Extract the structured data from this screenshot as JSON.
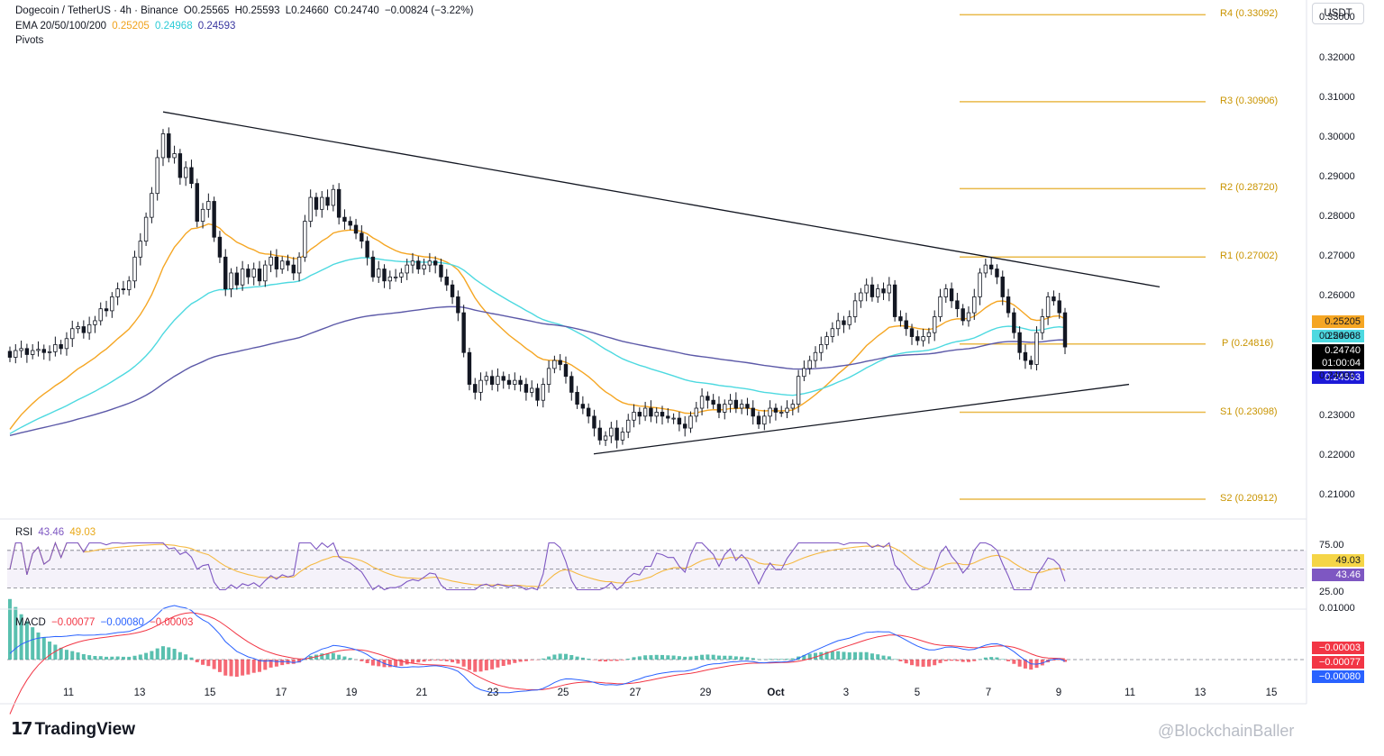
{
  "header": {
    "symbol": "Dogecoin / TetherUS · 4h · Binance",
    "open": "O0.25565",
    "high": "H0.25593",
    "low": "L0.24660",
    "close": "C0.24740",
    "change": "−0.00824 (−3.22%)",
    "ema_label": "EMA 20/50/100/200",
    "ema20": "0.25205",
    "ema50": "0.24968",
    "ema200": "0.24593",
    "pivots_label": "Pivots"
  },
  "currency_button": "USDT",
  "rsi_header": {
    "label": "RSI",
    "rsi": "43.46",
    "ma": "49.03"
  },
  "macd_header": {
    "label": "MACD",
    "macd": "−0.00077",
    "signal": "−0.00080",
    "hist": "−0.00003"
  },
  "price_badges": {
    "ema20": "0.25205",
    "ema50": "0.24968",
    "last": "0.24740",
    "countdown": "01:00:04",
    "ema200": "0.24593"
  },
  "rsi_badges": {
    "ma": "49.03",
    "rsi": "43.46"
  },
  "macd_badges": {
    "hist": "−0.00003",
    "macd": "−0.00077",
    "signal": "−0.00080"
  },
  "colors": {
    "ema20": "#f5a623",
    "ema50": "#4dd9e0",
    "ema200": "#5c59a8",
    "up": "#131722",
    "pivot": "#e9b949",
    "rsi_line": "#7e57c2",
    "rsi_ma": "#f5b942",
    "macd": "#2962ff",
    "signal": "#f23645",
    "hist_up": "#22ab94",
    "hist_down": "#f23645"
  },
  "branding": {
    "logo": "TradingView",
    "watermark": "@BlockchainBaller"
  },
  "chart_data": [
    {
      "type": "candlestick",
      "title": "Dogecoin / TetherUS · 4h · Binance",
      "x_tick_labels": [
        "11",
        "13",
        "15",
        "17",
        "19",
        "21",
        "23",
        "25",
        "27",
        "29",
        "Oct",
        "3",
        "5",
        "7",
        "9",
        "11",
        "13",
        "15"
      ],
      "y_tick_labels": [
        "0.21000",
        "0.22000",
        "0.23000",
        "0.24000",
        "0.25000",
        "0.26000",
        "0.27000",
        "0.28000",
        "0.29000",
        "0.30000",
        "0.31000",
        "0.32000",
        "0.33000"
      ],
      "ylim": [
        0.2055,
        0.3335
      ],
      "candle_close": [
        0.2448,
        0.2465,
        0.247,
        0.2455,
        0.2465,
        0.2468,
        0.246,
        0.2462,
        0.248,
        0.247,
        0.2495,
        0.252,
        0.2525,
        0.251,
        0.253,
        0.254,
        0.257,
        0.2565,
        0.26,
        0.262,
        0.2618,
        0.264,
        0.27,
        0.274,
        0.28,
        0.286,
        0.295,
        0.301,
        0.295,
        0.296,
        0.29,
        0.2925,
        0.2885,
        0.279,
        0.282,
        0.284,
        0.275,
        0.27,
        0.262,
        0.266,
        0.263,
        0.267,
        0.265,
        0.267,
        0.264,
        0.268,
        0.27,
        0.267,
        0.269,
        0.268,
        0.266,
        0.27,
        0.279,
        0.285,
        0.282,
        0.285,
        0.283,
        0.287,
        0.28,
        0.279,
        0.278,
        0.276,
        0.274,
        0.27,
        0.265,
        0.267,
        0.264,
        0.265,
        0.265,
        0.266,
        0.268,
        0.269,
        0.267,
        0.268,
        0.269,
        0.268,
        0.265,
        0.263,
        0.26,
        0.256,
        0.246,
        0.238,
        0.236,
        0.239,
        0.24,
        0.238,
        0.24,
        0.239,
        0.238,
        0.239,
        0.238,
        0.236,
        0.237,
        0.234,
        0.238,
        0.242,
        0.244,
        0.243,
        0.24,
        0.236,
        0.233,
        0.232,
        0.23,
        0.227,
        0.224,
        0.225,
        0.227,
        0.224,
        0.226,
        0.229,
        0.231,
        0.23,
        0.232,
        0.23,
        0.231,
        0.23,
        0.2295,
        0.2295,
        0.228,
        0.227,
        0.23,
        0.232,
        0.235,
        0.234,
        0.233,
        0.231,
        0.233,
        0.234,
        0.232,
        0.233,
        0.232,
        0.23,
        0.228,
        0.23,
        0.232,
        0.231,
        0.231,
        0.232,
        0.233,
        0.24,
        0.242,
        0.244,
        0.246,
        0.248,
        0.25,
        0.252,
        0.254,
        0.253,
        0.255,
        0.259,
        0.261,
        0.263,
        0.26,
        0.262,
        0.261,
        0.263,
        0.255,
        0.254,
        0.252,
        0.25,
        0.249,
        0.25,
        0.251,
        0.255,
        0.26,
        0.262,
        0.259,
        0.257,
        0.254,
        0.256,
        0.26,
        0.266,
        0.268,
        0.267,
        0.265,
        0.26,
        0.256,
        0.251,
        0.246,
        0.244,
        0.243,
        0.251,
        0.255,
        0.26,
        0.259,
        0.256,
        0.2474
      ],
      "ema20_end": 0.25205,
      "ema50_end": 0.24968,
      "ema200_end": 0.24593,
      "last_price": 0.2474,
      "pivots": [
        {
          "name": "R4",
          "value": 0.33092
        },
        {
          "name": "R3",
          "value": 0.30906
        },
        {
          "name": "R2",
          "value": 0.2872
        },
        {
          "name": "R1",
          "value": 0.27002
        },
        {
          "name": "P",
          "value": 0.24816
        },
        {
          "name": "S1",
          "value": 0.23098
        },
        {
          "name": "S2",
          "value": 0.20912
        }
      ],
      "trendlines": [
        {
          "name": "descending-resistance",
          "from": [
            13.8,
            0.3065
          ],
          "to": [
            11.3,
            0.2625
          ]
        },
        {
          "name": "ascending-support",
          "from": [
            25.8,
            0.2205
          ],
          "to": [
            10.0,
            0.238
          ]
        }
      ]
    },
    {
      "type": "line",
      "title": "RSI",
      "y_tick_labels": [
        "25.00",
        "75.00"
      ],
      "band": [
        30,
        70
      ],
      "rsi_last": 43.46,
      "rsi_ma_last": 49.03
    },
    {
      "type": "line",
      "title": "MACD",
      "y_tick_labels": [
        "0.01000"
      ],
      "macd_last": -0.00077,
      "signal_last": -0.0008,
      "hist_last": -3e-05
    }
  ]
}
